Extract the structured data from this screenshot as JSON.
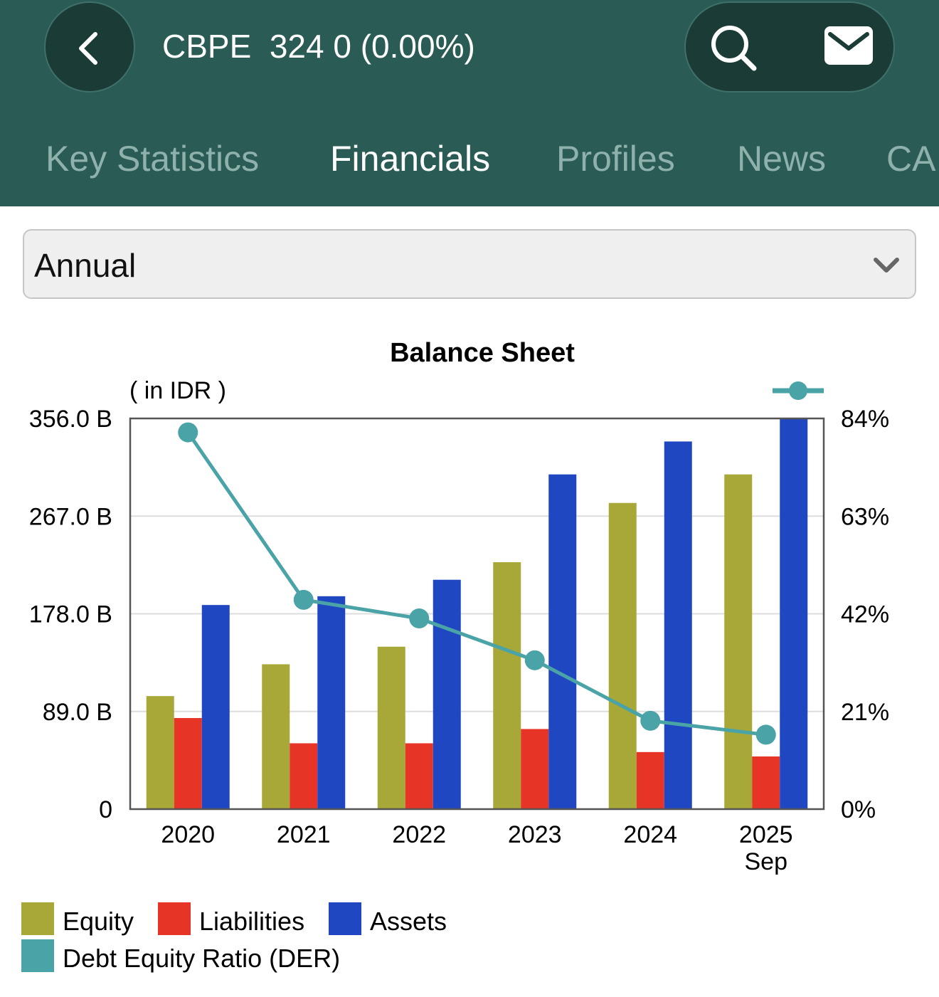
{
  "header": {
    "ticker": "CBPE",
    "quote": "324 0 (0.00%)",
    "back_icon": "chevron-left-icon",
    "search_icon": "search-icon",
    "mail_icon": "mail-icon"
  },
  "tabs": [
    {
      "label": "Key Statistics",
      "active": false
    },
    {
      "label": "Financials",
      "active": true
    },
    {
      "label": "Profiles",
      "active": false
    },
    {
      "label": "News",
      "active": false
    },
    {
      "label": "CA",
      "active": false
    }
  ],
  "period_select": {
    "value": "Annual",
    "icon": "chevron-down-icon"
  },
  "colors": {
    "header_bg": "#2a5c55",
    "equity": "#a8a838",
    "liabilities": "#e63527",
    "assets": "#1f47c2",
    "der": "#4aa3a6"
  },
  "chart_data": {
    "type": "bar",
    "title": "Balance Sheet",
    "unit_label": "( in IDR )",
    "categories": [
      "2020",
      "2021",
      "2022",
      "2023",
      "2024",
      "2025\nSep"
    ],
    "series": [
      {
        "name": "Equity",
        "type": "bar",
        "axis": "left",
        "values": [
          103,
          132,
          148,
          225,
          279,
          305
        ]
      },
      {
        "name": "Liabilities",
        "type": "bar",
        "axis": "left",
        "values": [
          83,
          60,
          60,
          73,
          52,
          48
        ]
      },
      {
        "name": "Assets",
        "type": "bar",
        "axis": "left",
        "values": [
          186,
          194,
          209,
          305,
          335,
          356
        ]
      },
      {
        "name": "Debt Equity Ratio (DER)",
        "type": "line",
        "axis": "right",
        "values": [
          81,
          45,
          41,
          32,
          19,
          16
        ]
      }
    ],
    "y_left": {
      "ticks": [
        0,
        89,
        178,
        267,
        356
      ],
      "tick_labels": [
        "0",
        "89.0 B",
        "178.0 B",
        "267.0 B",
        "356.0 B"
      ],
      "range": [
        0,
        356
      ],
      "units": "B IDR"
    },
    "y_right": {
      "ticks": [
        0,
        21,
        42,
        63,
        84
      ],
      "tick_labels": [
        "0%",
        "21%",
        "42%",
        "63%",
        "84%"
      ],
      "range": [
        0,
        84
      ],
      "units": "%"
    },
    "grid": true,
    "legend_position": "bottom-left"
  }
}
